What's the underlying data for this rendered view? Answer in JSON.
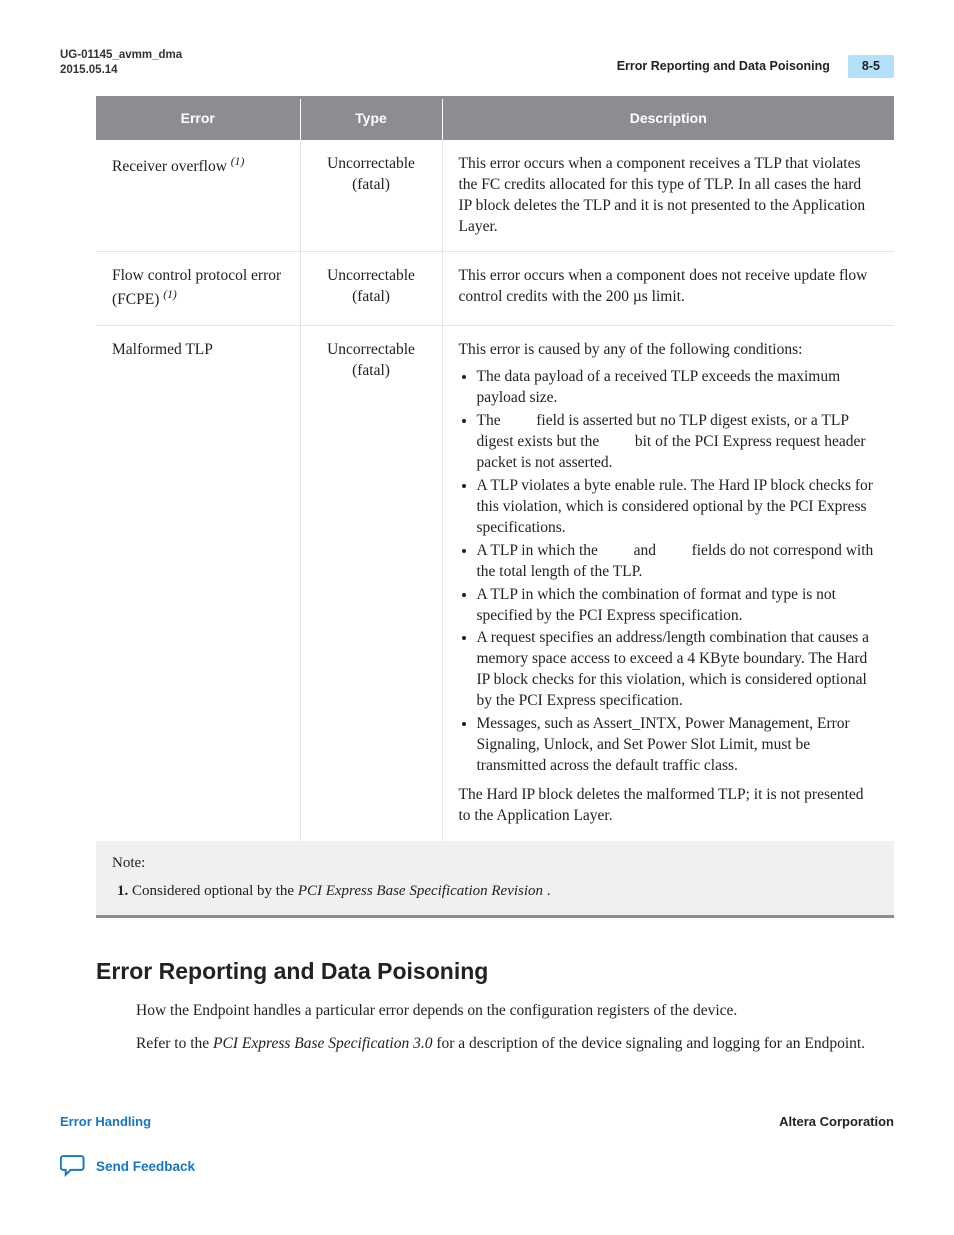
{
  "colors": {
    "header_gray": "#8b8d91",
    "panel_bg": "#eef0f2",
    "page_tab_bg": "#b3e0fb",
    "link_blue": "#1776c3"
  },
  "header": {
    "doc_id": "UG-01145_avmm_dma",
    "date": "2015.05.14",
    "section_title": "Error Reporting and Data Poisoning",
    "page_number": "8-5"
  },
  "table": {
    "columns": [
      "Error",
      "Type",
      "Description"
    ],
    "rows": [
      {
        "error": "Receiver overflow",
        "error_footnote": "(1)",
        "type": "Uncorrectable (fatal)",
        "description_plain": "This error occurs when a component receives a TLP that violates the FC credits allocated for this type of TLP. In all cases the hard IP block deletes the TLP and it is not presented to the Application Layer."
      },
      {
        "error": "Flow control protocol error (FCPE)",
        "error_footnote": "(1)",
        "type": "Uncorrectable (fatal)",
        "description_plain": "This error occurs when a component does not receive update flow control credits with the 200 µs limit."
      },
      {
        "error": "Malformed TLP",
        "error_footnote": "",
        "type": "Uncorrectable (fatal)",
        "description_intro": "This error is caused by any of the following conditions:",
        "description_bullets": [
          "The data payload of a received TLP exceeds the maximum payload size.",
          "The __GAP__ field is asserted but no TLP digest exists, or a TLP digest exists but the __GAP__ bit of the PCI Express request header packet is not asserted.",
          "A TLP violates a byte enable rule. The Hard IP block checks for this violation, which is considered optional by the PCI Express specifications.",
          "A TLP in which the __GAP__ and __GAP__ fields do not correspond with the total length of the TLP.",
          "A TLP in which the combination of format and type is not specified by the PCI Express specification.",
          "A request specifies an address/length combination that causes a memory space access to exceed a 4 KByte boundary. The Hard IP block checks for this violation, which is considered optional by the PCI Express specification.",
          "Messages, such as Assert_INTX, Power Management, Error Signaling, Unlock, and Set Power Slot Limit, must be transmitted across the default traffic class."
        ],
        "description_outro": "The Hard IP block deletes the malformed TLP; it is not presented to the Application Layer."
      }
    ],
    "note_label": "Note:",
    "notes": [
      {
        "n": "1.",
        "text_pre": "Considered optional by the ",
        "text_em": "PCI Express Base Specification Revision",
        "text_post": " ."
      }
    ]
  },
  "section": {
    "heading": "Error Reporting and Data Poisoning",
    "para1": "How the Endpoint handles a particular error depends on the configuration registers of the device.",
    "para2_pre": "Refer to the ",
    "para2_em": "PCI Express Base Specification 3.0",
    "para2_post": " for a description of the device signaling and logging for an Endpoint."
  },
  "footer": {
    "left": "Error Handling",
    "right": "Altera Corporation",
    "feedback": "Send Feedback"
  }
}
